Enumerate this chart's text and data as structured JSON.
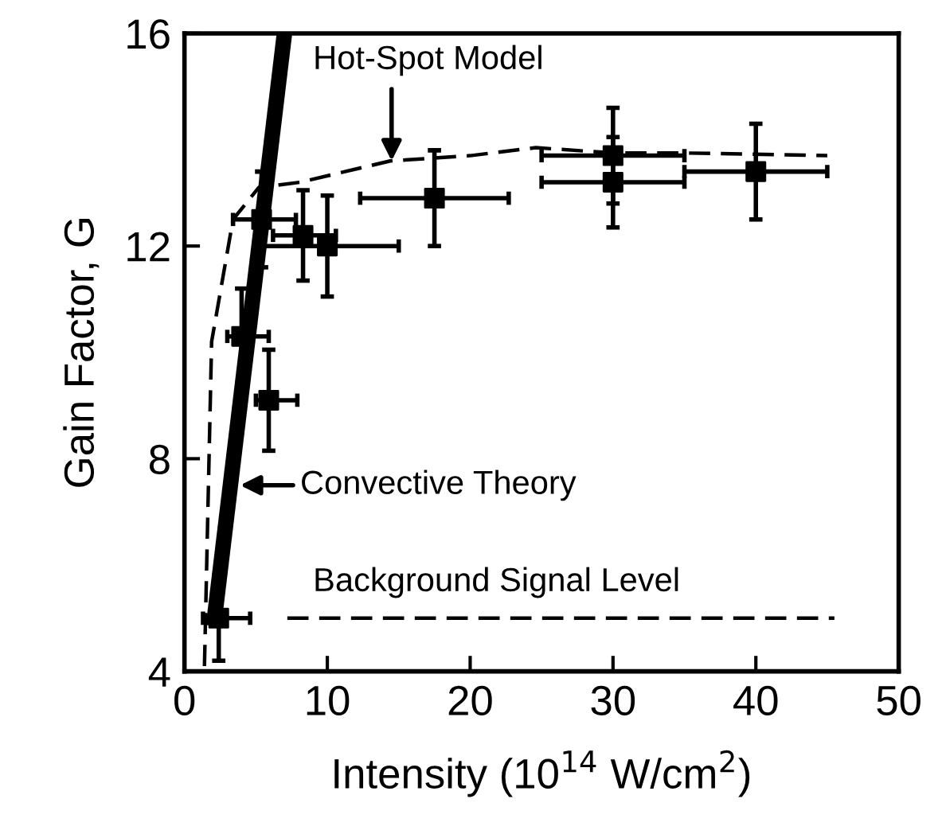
{
  "chart_data": {
    "type": "scatter",
    "xlabel": "Intensity (10$^{14}$ W/cm$^{2}$)",
    "ylabel": "Gain Factor, G",
    "xlim": [
      0,
      50
    ],
    "ylim": [
      4,
      16
    ],
    "xticks": [
      0,
      10,
      20,
      30,
      40,
      50
    ],
    "yticks": [
      4,
      8,
      12,
      16
    ],
    "grid": false,
    "series": [
      {
        "type": "line",
        "color": "#000000",
        "line_style": "dashed",
        "marker": "none",
        "x": [
          1.4,
          1.9,
          3.4,
          5.2,
          8.1,
          14.4,
          20,
          24.6,
          30,
          35,
          45
        ],
        "values": [
          4.1,
          10.2,
          12.5,
          13.1,
          13.2,
          13.6,
          13.7,
          13.85,
          13.75,
          13.75,
          13.7
        ]
      },
      {
        "type": "line",
        "color": "#000000",
        "line_style": "solid",
        "marker": "none",
        "x": [
          2.1,
          7.0
        ],
        "values": [
          5.0,
          16.0
        ]
      },
      {
        "type": "line",
        "color": "#000000",
        "line_style": "dashed",
        "marker": "none",
        "x": [
          7.2,
          45.5
        ],
        "values": [
          5,
          5
        ]
      },
      {
        "color": "#000000",
        "marker": "square",
        "x": [
          2.4,
          4,
          5.9,
          5.4,
          8.3,
          10,
          17.5,
          30,
          30,
          40
        ],
        "values": [
          5.0,
          10.3,
          9.1,
          12.5,
          12.2,
          12.0,
          12.9,
          13.7,
          13.2,
          13.4
        ],
        "errors": [
          0.8,
          0.9,
          0.95,
          0.9,
          0.85,
          0.95,
          0.9,
          0.9,
          0.85,
          0.9
        ],
        "xerrors": [
          [
            1.3,
            4.6
          ],
          [
            3.0,
            5.9
          ],
          [
            5.0,
            7.9
          ],
          [
            3.4,
            7.8
          ],
          [
            6.2,
            10.6
          ],
          [
            5,
            15
          ],
          [
            12.3,
            22.7
          ],
          [
            25,
            35
          ],
          [
            25,
            35
          ],
          [
            35,
            45
          ]
        ]
      }
    ],
    "annotations": [
      {
        "text": "Hot-Spot Model",
        "x": 14.5,
        "y": 13.6
      },
      {
        "text": "Convective Theory",
        "x": 3.9,
        "y": 7.5
      },
      "Background Signal Level"
    ]
  }
}
